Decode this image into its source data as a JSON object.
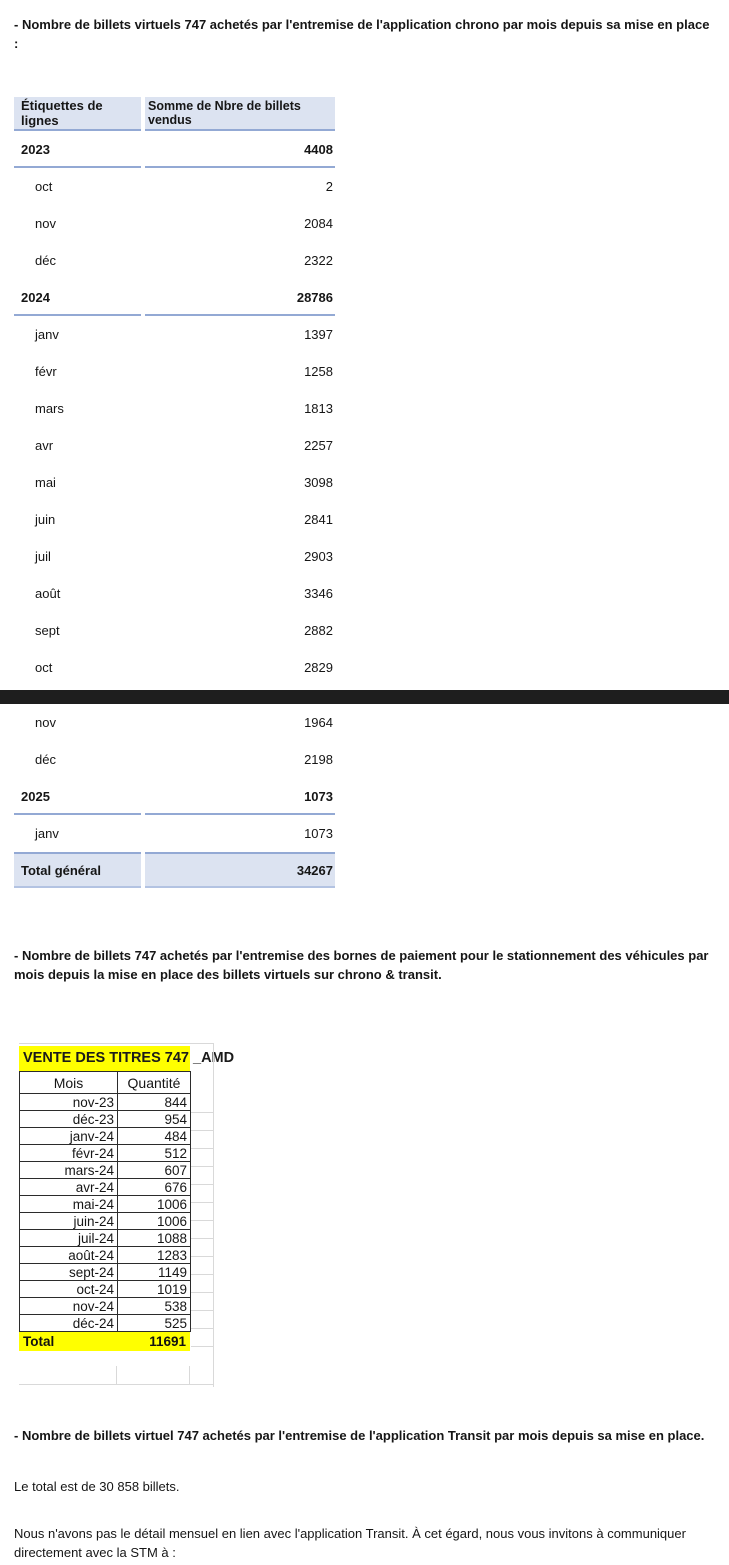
{
  "page": {
    "background": "#ffffff",
    "separator_color": "#1e1e1e"
  },
  "intro_paragraph": "- Nombre de billets virtuels 747 achetés par l'entremise de l'application chrono par mois depuis sa mise en place :",
  "pivot_table": {
    "header": {
      "rows_label": "Étiquettes de lignes",
      "values_label": "Somme de Nbre de billets vendus"
    },
    "header_bg": "#dce3f1",
    "border_color": "#93a9d4",
    "rows_before_break": [
      {
        "label": "2023",
        "value": "4408",
        "type": "year"
      },
      {
        "label": "oct",
        "value": "2",
        "type": "month"
      },
      {
        "label": "nov",
        "value": "2084",
        "type": "month"
      },
      {
        "label": "déc",
        "value": "2322",
        "type": "month"
      },
      {
        "label": "2024",
        "value": "28786",
        "type": "year"
      },
      {
        "label": "janv",
        "value": "1397",
        "type": "month"
      },
      {
        "label": "févr",
        "value": "1258",
        "type": "month"
      },
      {
        "label": "mars",
        "value": "1813",
        "type": "month"
      },
      {
        "label": "avr",
        "value": "2257",
        "type": "month"
      },
      {
        "label": "mai",
        "value": "3098",
        "type": "month"
      },
      {
        "label": "juin",
        "value": "2841",
        "type": "month"
      },
      {
        "label": "juil",
        "value": "2903",
        "type": "month"
      },
      {
        "label": "août",
        "value": "3346",
        "type": "month"
      },
      {
        "label": "sept",
        "value": "2882",
        "type": "month"
      },
      {
        "label": "oct",
        "value": "2829",
        "type": "month"
      }
    ],
    "rows_after_break": [
      {
        "label": "nov",
        "value": "1964",
        "type": "month"
      },
      {
        "label": "déc",
        "value": "2198",
        "type": "month"
      },
      {
        "label": "2025",
        "value": "1073",
        "type": "year"
      },
      {
        "label": "janv",
        "value": "1073",
        "type": "month"
      },
      {
        "label": "Total général",
        "value": "34267",
        "type": "total"
      }
    ]
  },
  "section2_paragraph": "- Nombre de billets 747 achetés par l'entremise des bornes de paiement pour le stationnement des véhicules par mois depuis la mise en place des billets virtuels sur chrono & transit.",
  "excel_table": {
    "title": "VENTE DES TITRES 747 _AMD",
    "title_bg": "#ffff00",
    "columns": [
      "Mois",
      "Quantité"
    ],
    "rows": [
      {
        "mois": "nov-23",
        "quantite": "844"
      },
      {
        "mois": "déc-23",
        "quantite": "954"
      },
      {
        "mois": "janv-24",
        "quantite": "484"
      },
      {
        "mois": "févr-24",
        "quantite": "512"
      },
      {
        "mois": "mars-24",
        "quantite": "607"
      },
      {
        "mois": "avr-24",
        "quantite": "676"
      },
      {
        "mois": "mai-24",
        "quantite": "1006"
      },
      {
        "mois": "juin-24",
        "quantite": "1006"
      },
      {
        "mois": "juil-24",
        "quantite": "1088"
      },
      {
        "mois": "août-24",
        "quantite": "1283"
      },
      {
        "mois": "sept-24",
        "quantite": "1149"
      },
      {
        "mois": "oct-24",
        "quantite": "1019"
      },
      {
        "mois": "nov-24",
        "quantite": "538"
      },
      {
        "mois": "déc-24",
        "quantite": "525"
      }
    ],
    "total": {
      "label": "Total",
      "value": "11691"
    }
  },
  "section3_paragraph": "- Nombre de billets virtuel 747 achetés par l'entremise de l'application Transit par mois depuis sa mise en place.",
  "total_paragraph": "Le total est de 30 858 billets.",
  "closing_paragraph": "Nous n'avons pas le détail mensuel en lien avec l'application Transit.  À cet égard, nous vous invitons à communiquer directement avec la STM à :"
}
